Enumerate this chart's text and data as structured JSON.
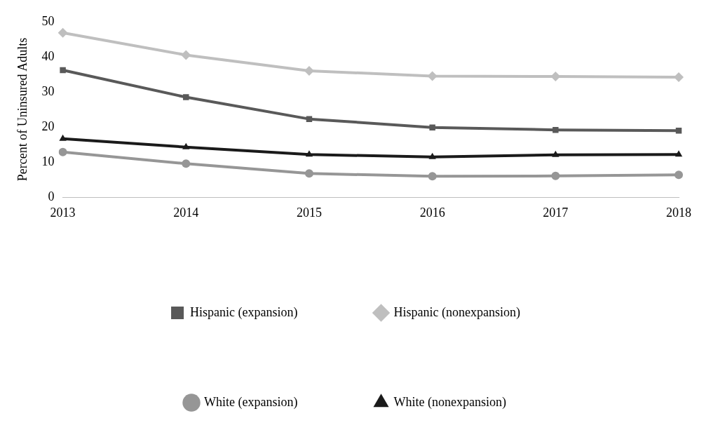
{
  "chart_data": {
    "type": "line",
    "ylabel": "Percent of Uninsured Adults",
    "categories": [
      "2013",
      "2014",
      "2015",
      "2016",
      "2017",
      "2018"
    ],
    "ylim": [
      0,
      50
    ],
    "yticks": [
      0,
      10,
      20,
      30,
      40,
      50
    ],
    "grid": false,
    "legend": "bottom",
    "series": [
      {
        "name": "Hispanic (expansion)",
        "color": "#595959",
        "marker": "square",
        "values": [
          36.2,
          28.5,
          22.3,
          19.9,
          19.2,
          19.0
        ]
      },
      {
        "name": "Hispanic (nonexpansion)",
        "color": "#bfbfbf",
        "marker": "diamond",
        "values": [
          46.8,
          40.5,
          36.0,
          34.5,
          34.4,
          34.2
        ]
      },
      {
        "name": "White (expansion)",
        "color": "#969696",
        "marker": "circle",
        "values": [
          12.9,
          9.6,
          6.8,
          6.0,
          6.1,
          6.4
        ]
      },
      {
        "name": "White (nonexpansion)",
        "color": "#1a1a1a",
        "marker": "triangle",
        "values": [
          16.7,
          14.3,
          12.2,
          11.5,
          12.1,
          12.2
        ]
      }
    ]
  }
}
